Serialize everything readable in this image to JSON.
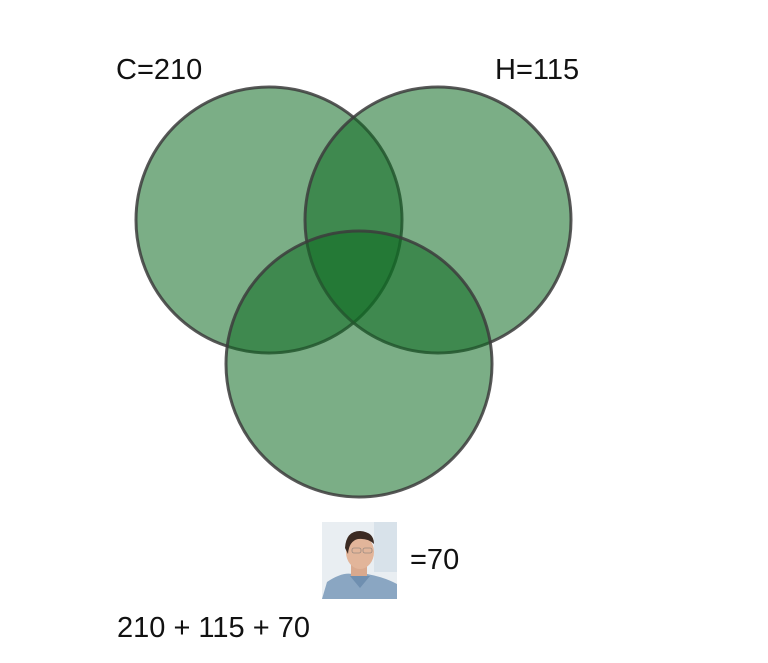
{
  "labels": {
    "c": "C=210",
    "h": "H=115",
    "photo_value": "=70",
    "sum": "210 + 115 + 70"
  },
  "colors": {
    "circle_fill": "#0f6b23",
    "circle_stroke": "#3c3c3c"
  },
  "circles": [
    {
      "name": "C"
    },
    {
      "name": "H"
    },
    {
      "name": "third"
    }
  ],
  "photo": {
    "subject": "man-with-glasses-portrait"
  }
}
